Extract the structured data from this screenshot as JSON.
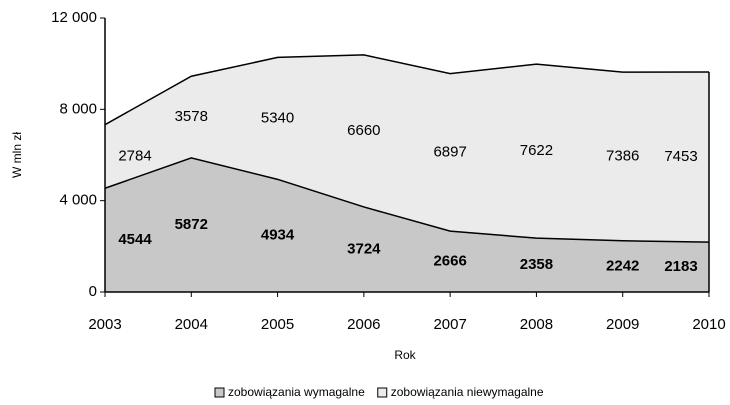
{
  "chart_data": {
    "type": "area",
    "stacked": true,
    "x_label": "Rok",
    "y_label": "W mln zł",
    "x": [
      2003,
      2004,
      2005,
      2006,
      2007,
      2008,
      2009,
      2010
    ],
    "series": [
      {
        "name": "zobowiązania wymagalne",
        "color": "#c8c8c8",
        "values": [
          4544,
          5872,
          4934,
          3724,
          2666,
          2358,
          2242,
          2183
        ]
      },
      {
        "name": "zobowiązania niewymagalne",
        "color": "#ebebeb",
        "values": [
          2784,
          3578,
          5340,
          6660,
          6897,
          7622,
          7386,
          7453
        ]
      }
    ],
    "xlim": [
      2003,
      2010
    ],
    "xticks": [
      2003,
      2004,
      2005,
      2006,
      2007,
      2008,
      2009,
      2010
    ],
    "ylim": [
      0,
      12000
    ],
    "yticks": [
      0,
      {
        "value": 4000,
        "label": "4 000"
      },
      {
        "value": 8000,
        "label": "8 000"
      },
      {
        "value": 12000,
        "label": "12 000"
      }
    ],
    "legend": "bottom"
  }
}
